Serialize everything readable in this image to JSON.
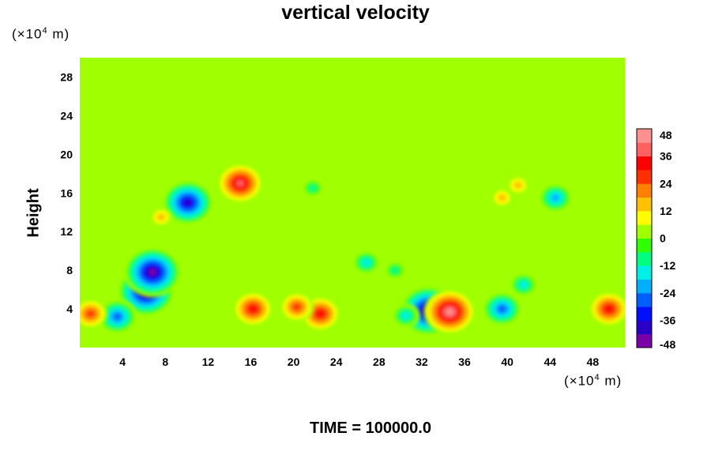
{
  "chart_data": {
    "type": "heatmap",
    "title": "vertical velocity",
    "ylabel": "Height",
    "x_unit": [
      "(×10",
      "4",
      " m)"
    ],
    "y_unit": [
      "(×10",
      "4",
      " m)"
    ],
    "footer": "TIME = 100000.0",
    "xlim": [
      0,
      51
    ],
    "ylim": [
      0,
      30
    ],
    "x_ticks": [
      4,
      8,
      12,
      16,
      20,
      24,
      28,
      32,
      36,
      40,
      44,
      48
    ],
    "y_ticks": [
      4,
      8,
      12,
      16,
      20,
      24,
      28
    ],
    "colorbar": {
      "ticks": [
        48,
        36,
        24,
        12,
        0,
        -12,
        -24,
        -36,
        -48
      ],
      "range": [
        -48,
        48
      ],
      "colors": [
        "#7a00a8",
        "#2a00c8",
        "#0010ff",
        "#0060ff",
        "#00b0ff",
        "#00f0e8",
        "#00ff80",
        "#30ff00",
        "#a0ff00",
        "#ffff00",
        "#ffc000",
        "#ff8000",
        "#ff3000",
        "#ff0000",
        "#ff6060",
        "#ff9090"
      ]
    },
    "background_value": 0,
    "features": [
      {
        "x": 6.5,
        "y": 6.5,
        "value": -36
      },
      {
        "x": 6.2,
        "y": 5.8,
        "value": -48
      },
      {
        "x": 6.8,
        "y": 7.8,
        "value": -46
      },
      {
        "x": 3.5,
        "y": 3.2,
        "value": -28
      },
      {
        "x": 1.0,
        "y": 3.5,
        "value": 26
      },
      {
        "x": 16.2,
        "y": 4.0,
        "value": 30
      },
      {
        "x": 22.5,
        "y": 3.5,
        "value": 30
      },
      {
        "x": 20.3,
        "y": 4.2,
        "value": 22
      },
      {
        "x": 32.6,
        "y": 3.8,
        "value": -48
      },
      {
        "x": 30.5,
        "y": 3.3,
        "value": -16
      },
      {
        "x": 34.6,
        "y": 3.7,
        "value": 40
      },
      {
        "x": 39.5,
        "y": 4.0,
        "value": -28
      },
      {
        "x": 41.5,
        "y": 6.5,
        "value": -20
      },
      {
        "x": 49.5,
        "y": 4.0,
        "value": 28
      },
      {
        "x": 15.0,
        "y": 17.0,
        "value": 36
      },
      {
        "x": 10.1,
        "y": 15.0,
        "value": -40
      },
      {
        "x": 7.6,
        "y": 13.5,
        "value": 14
      },
      {
        "x": 44.5,
        "y": 15.5,
        "value": -24
      },
      {
        "x": 39.5,
        "y": 15.5,
        "value": 14
      },
      {
        "x": 41.0,
        "y": 16.8,
        "value": 12
      },
      {
        "x": 26.8,
        "y": 8.8,
        "value": -16
      },
      {
        "x": 29.5,
        "y": 8.0,
        "value": -14
      },
      {
        "x": 21.8,
        "y": 16.5,
        "value": -12
      }
    ]
  }
}
